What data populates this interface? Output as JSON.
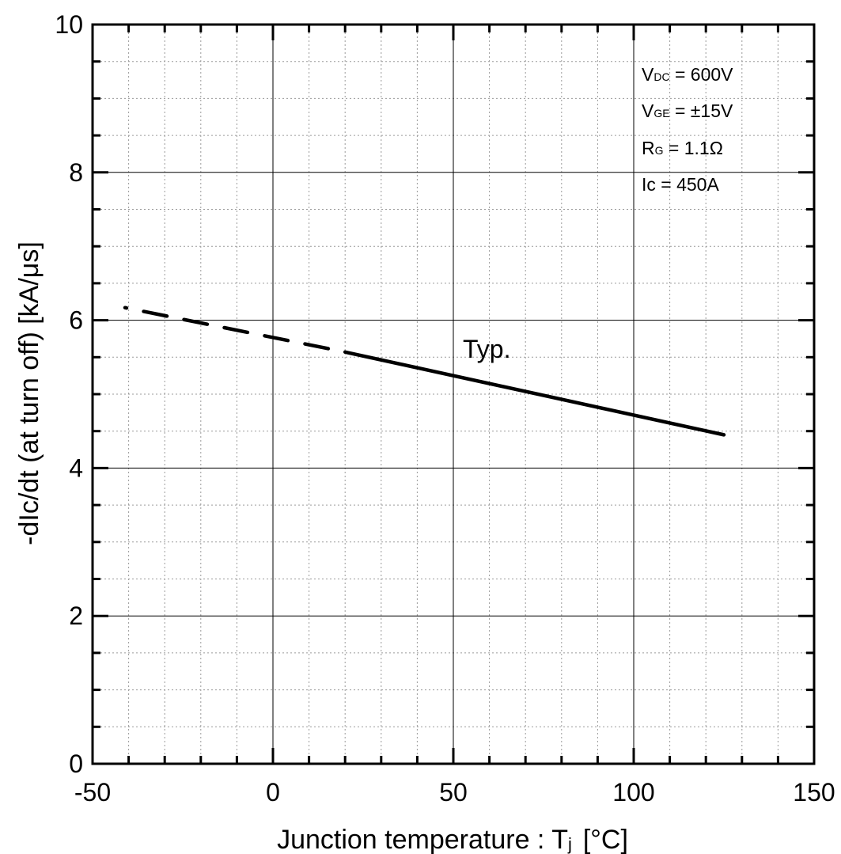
{
  "chart_data": {
    "type": "line",
    "title": "",
    "xlabel": "Junction temperature : Tj  [°C]",
    "xlabel_main": "Junction temperature : T",
    "xlabel_sub": "j",
    "xlabel_unit": "[°C]",
    "ylabel": "-dIc/dt  (at turn off)  [kA/μs]",
    "xlim": [
      -50,
      150
    ],
    "ylim": [
      0,
      10
    ],
    "x_ticks": [
      -50,
      0,
      50,
      100,
      150
    ],
    "y_ticks": [
      0,
      2,
      4,
      6,
      8,
      10
    ],
    "x_tick_labels": [
      "-50",
      "0",
      "50",
      "100",
      "150"
    ],
    "y_tick_labels": [
      "0",
      "2",
      "4",
      "6",
      "8",
      "10"
    ],
    "grid": true,
    "series": [
      {
        "name": "Typ.",
        "segments": [
          {
            "style": "dashed",
            "x": [
              -41,
              20
            ],
            "y": [
              6.17,
              5.57
            ]
          },
          {
            "style": "solid",
            "x": [
              20,
              125
            ],
            "y": [
              5.57,
              4.45
            ]
          }
        ]
      }
    ],
    "annotations": [
      {
        "main": "V",
        "sub": "DC",
        "rest": " = 600V"
      },
      {
        "main": "V",
        "sub": "GE",
        "rest": " = ±15V"
      },
      {
        "main": "R",
        "sub": "G",
        "rest": " = 1.1Ω"
      },
      {
        "main": "Ic",
        "sub": "",
        "rest": " = 450A"
      }
    ]
  }
}
